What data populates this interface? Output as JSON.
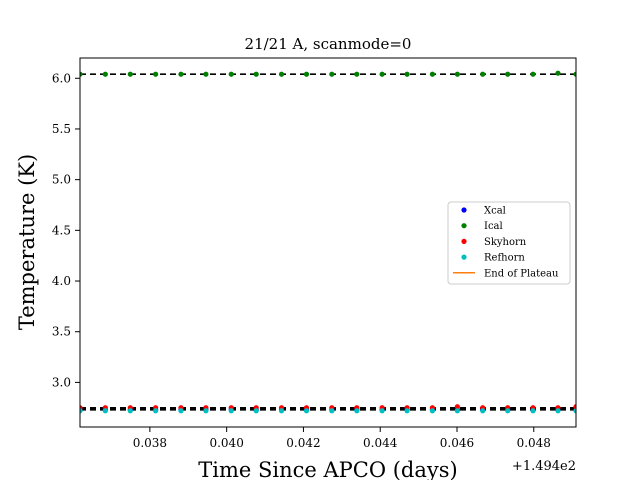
{
  "chart_data": {
    "type": "scatter",
    "title": "21/21 A, scanmode=0",
    "xlabel": "Time Since APCO (days)",
    "ylabel": "Temperature (K)",
    "x_offset_label": "+1.494e2",
    "xlim": [
      0.03618,
      0.0491
    ],
    "ylim": [
      2.56,
      6.2
    ],
    "x_ticks": [
      0.038,
      0.04,
      0.042,
      0.044,
      0.046,
      0.048
    ],
    "x_tick_labels": [
      "0.038",
      "0.040",
      "0.042",
      "0.044",
      "0.046",
      "0.048"
    ],
    "y_ticks": [
      3.0,
      3.5,
      4.0,
      4.5,
      5.0,
      5.5,
      6.0
    ],
    "y_tick_labels": [
      "3.0",
      "3.5",
      "4.0",
      "4.5",
      "5.0",
      "5.5",
      "6.0"
    ],
    "grid": false,
    "legend_position": "center-right",
    "x": [
      0.03618,
      0.03684,
      0.03749,
      0.03815,
      0.03881,
      0.03946,
      0.04012,
      0.04077,
      0.04143,
      0.04208,
      0.04274,
      0.04339,
      0.04405,
      0.0447,
      0.04536,
      0.04601,
      0.04667,
      0.04732,
      0.04798,
      0.04863,
      0.0491
    ],
    "series": [
      {
        "name": "Xcal",
        "color": "#0000ff",
        "marker": "point",
        "values": [
          2.73,
          2.73,
          2.73,
          2.73,
          2.73,
          2.73,
          2.73,
          2.73,
          2.73,
          2.73,
          2.73,
          2.73,
          2.73,
          2.73,
          2.73,
          2.73,
          2.73,
          2.73,
          2.73,
          2.73,
          2.73
        ]
      },
      {
        "name": "Ical",
        "color": "#008000",
        "marker": "point",
        "values": [
          6.04,
          6.04,
          6.04,
          6.04,
          6.04,
          6.04,
          6.04,
          6.04,
          6.04,
          6.04,
          6.04,
          6.04,
          6.04,
          6.04,
          6.04,
          6.04,
          6.04,
          6.04,
          6.04,
          6.05,
          6.04
        ]
      },
      {
        "name": "Skyhorn",
        "color": "#ff0000",
        "marker": "point",
        "values": [
          2.75,
          2.75,
          2.75,
          2.75,
          2.75,
          2.75,
          2.75,
          2.75,
          2.75,
          2.75,
          2.75,
          2.75,
          2.75,
          2.75,
          2.75,
          2.76,
          2.75,
          2.75,
          2.75,
          2.75,
          2.76
        ]
      },
      {
        "name": "Refhorn",
        "color": "#00bfbf",
        "marker": "point",
        "values": [
          2.72,
          2.72,
          2.72,
          2.72,
          2.72,
          2.72,
          2.72,
          2.72,
          2.72,
          2.72,
          2.72,
          2.72,
          2.72,
          2.72,
          2.72,
          2.72,
          2.72,
          2.72,
          2.72,
          2.72,
          2.72
        ]
      },
      {
        "name": "End of Plateau",
        "color": "#ff7f0e",
        "marker": "line",
        "values": []
      }
    ],
    "reference_lines": [
      {
        "y": 6.04,
        "style": "dashed",
        "color": "#000000"
      },
      {
        "y": 2.75,
        "style": "dashed",
        "color": "#000000"
      },
      {
        "y": 2.74,
        "style": "dashed",
        "color": "#000000"
      },
      {
        "y": 2.73,
        "style": "dashed",
        "color": "#000000"
      }
    ]
  }
}
